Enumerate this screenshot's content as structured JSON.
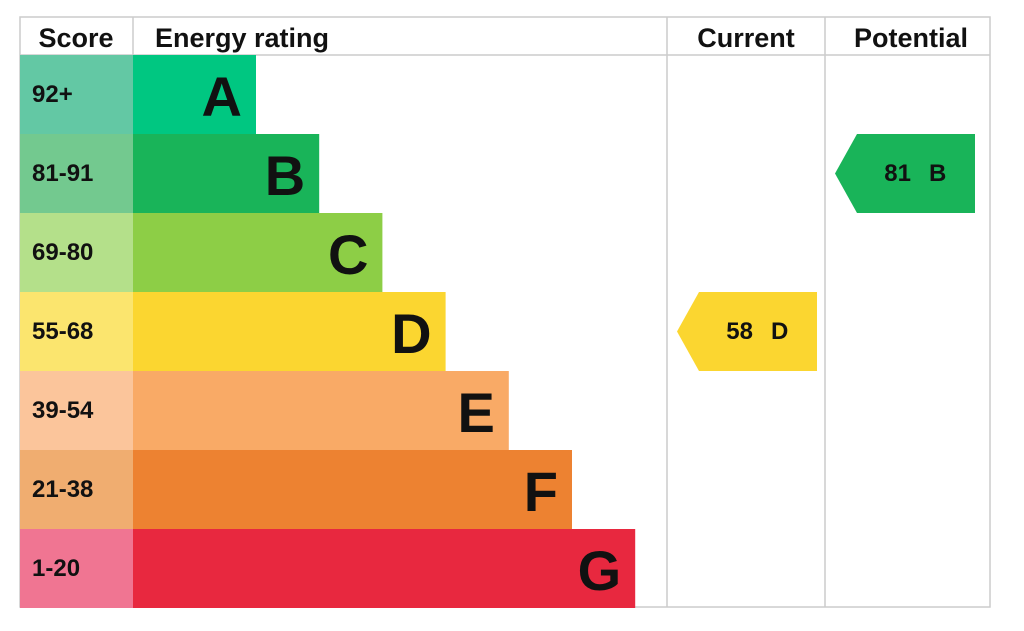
{
  "headers": {
    "score": "Score",
    "energy_rating": "Energy rating",
    "current": "Current",
    "potential": "Potential"
  },
  "bands": [
    {
      "score": "92+",
      "letter": "A",
      "color": "#00c781",
      "score_color": "#63c8a4"
    },
    {
      "score": "81-91",
      "letter": "B",
      "color": "#19b459",
      "score_color": "#73c98f"
    },
    {
      "score": "69-80",
      "letter": "C",
      "color": "#8dce46",
      "score_color": "#b4e08a"
    },
    {
      "score": "55-68",
      "letter": "D",
      "color": "#fbd630",
      "score_color": "#fbe56e"
    },
    {
      "score": "39-54",
      "letter": "E",
      "color": "#f9aa66",
      "score_color": "#fbc59b"
    },
    {
      "score": "21-38",
      "letter": "F",
      "color": "#ed8231",
      "score_color": "#f0ad70"
    },
    {
      "score": "1-20",
      "letter": "G",
      "color": "#e8283f",
      "score_color": "#f07592"
    }
  ],
  "current": {
    "value": 58,
    "rating": "D"
  },
  "potential": {
    "value": 81,
    "rating": "B"
  }
}
